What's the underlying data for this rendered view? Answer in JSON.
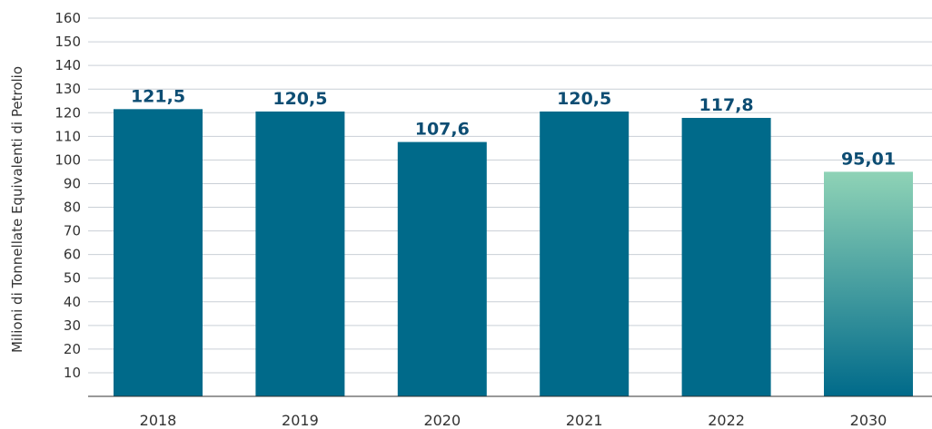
{
  "chart_data": {
    "type": "bar",
    "title": "",
    "xlabel": "",
    "ylabel": "Milioni di Tonnellate Equivalenti di Petrolio",
    "categories": [
      "2018",
      "2019",
      "2020",
      "2021",
      "2022",
      "2030"
    ],
    "values": [
      121.5,
      120.5,
      107.6,
      120.5,
      117.8,
      95.01
    ],
    "value_labels": [
      "121,5",
      "120,5",
      "107,6",
      "120,5",
      "117,8",
      "95,01"
    ],
    "ylim": [
      0,
      160
    ],
    "yticks": [
      10,
      20,
      30,
      40,
      50,
      60,
      70,
      80,
      90,
      100,
      110,
      120,
      130,
      140,
      150,
      160
    ],
    "grid": true,
    "legend": "none",
    "colors": {
      "bar": "#006a8a",
      "target_bar_top": "#8fd3b6",
      "target_bar_bottom": "#006a8a",
      "data_label": "#0d4d73",
      "grid": "#c9cfd6",
      "axis": "#333333"
    }
  }
}
